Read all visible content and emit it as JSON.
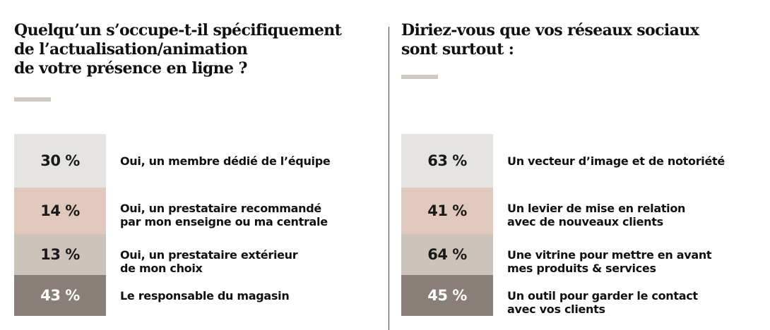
{
  "chart_data": [
    {
      "type": "bar",
      "title": "Quelqu’un s’occupe-t-il spécifiquement de l’actualisation/animation de votre présence en ligne ?",
      "title_lines": [
        "Quelqu’un s’occupe-t-il spécifiquement",
        "de l’actualisation/animation",
        "de votre présence en ligne ?"
      ],
      "categories": [
        "Oui, un membre dédié de l’équipe",
        "Oui, un prestataire recommandé par mon enseigne ou ma centrale",
        "Oui, un prestataire extérieur de mon choix",
        "Le responsable du magasin"
      ],
      "values": [
        30,
        14,
        13,
        43
      ],
      "value_labels": [
        "30 %",
        "14 %",
        "13 %",
        "43 %"
      ],
      "label_lines": [
        [
          "Oui, un membre dédié de l’équipe"
        ],
        [
          "Oui, un prestataire recommandé",
          "par mon enseigne ou ma centrale"
        ],
        [
          "Oui, un prestataire extérieur",
          "de mon choix"
        ],
        [
          "Le responsable du magasin"
        ]
      ],
      "colors": [
        "#e6e4e1",
        "#e0c8bc",
        "#ccc4bb",
        "#8a7f78"
      ],
      "text_colors": [
        "#1a1a1a",
        "#1a1a1a",
        "#1a1a1a",
        "#ffffff"
      ]
    },
    {
      "type": "bar",
      "title": "Diriez-vous que vos réseaux sociaux sont surtout :",
      "title_lines": [
        "Diriez-vous que vos réseaux sociaux",
        "sont surtout :"
      ],
      "categories": [
        "Un vecteur d’image et de notoriété",
        "Un levier de mise en relation avec de nouveaux clients",
        "Une vitrine pour mettre en avant mes produits & services",
        "Un outil pour garder le contact avec vos clients"
      ],
      "values": [
        63,
        41,
        64,
        45
      ],
      "value_labels": [
        "63 %",
        "41 %",
        "64 %",
        "45 %"
      ],
      "label_lines": [
        [
          "Un vecteur d’image et de notoriété"
        ],
        [
          "Un levier de mise en relation",
          "avec de nouveaux clients"
        ],
        [
          "Une vitrine pour mettre en avant",
          "mes produits & services"
        ],
        [
          "Un outil pour garder le contact",
          "avec vos clients"
        ]
      ],
      "colors": [
        "#e6e4e1",
        "#e0c8bc",
        "#ccc4bb",
        "#8a7f78"
      ],
      "text_colors": [
        "#1a1a1a",
        "#1a1a1a",
        "#1a1a1a",
        "#ffffff"
      ]
    }
  ]
}
